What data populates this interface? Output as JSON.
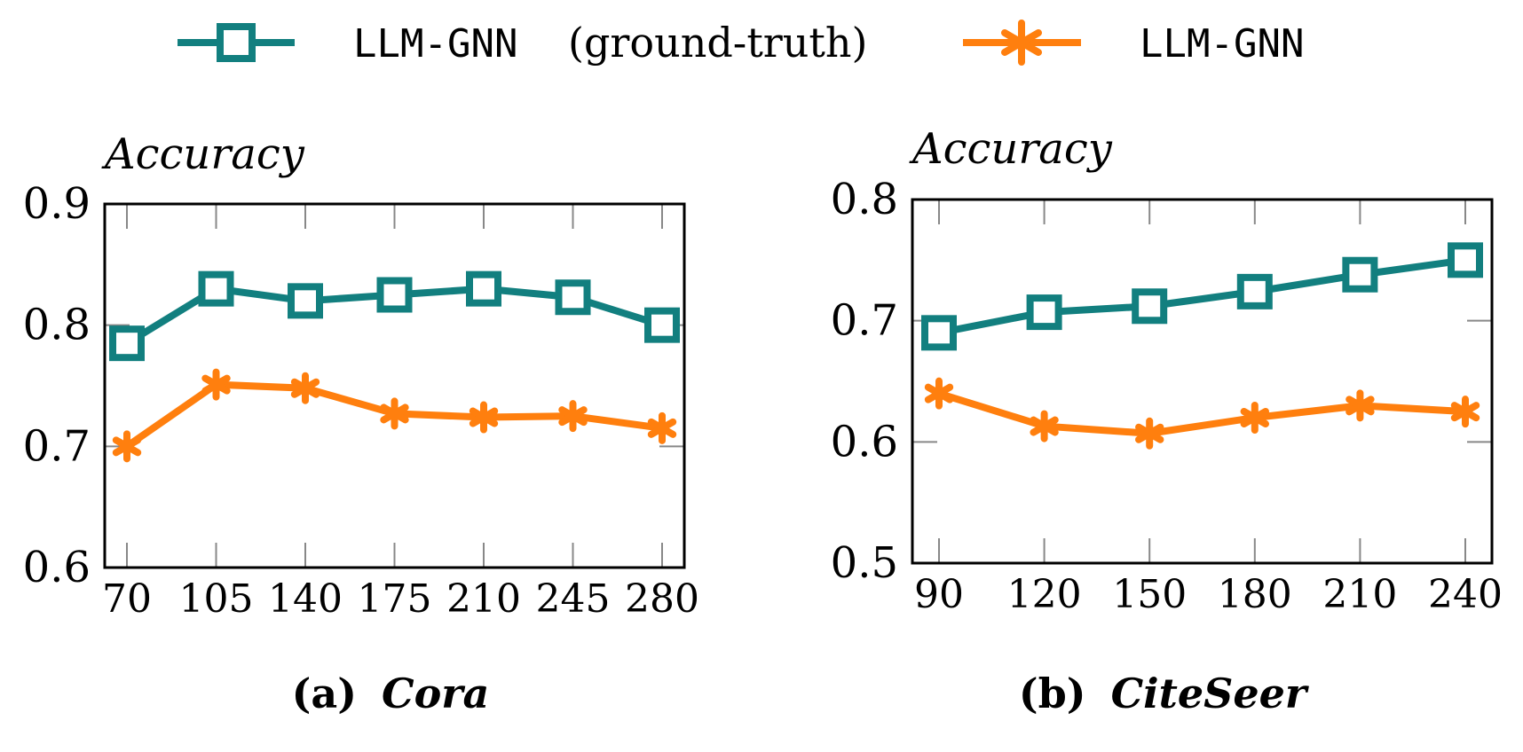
{
  "legend": {
    "items": [
      {
        "label_code": "LLM-GNN",
        "label_suffix": "(ground-truth)",
        "marker": "square-marker-icon",
        "color": "#127f7f"
      },
      {
        "label_code": "LLM-GNN",
        "label_suffix": "",
        "marker": "star-marker-icon",
        "color": "#ff7f0e"
      }
    ]
  },
  "chart_data": [
    {
      "type": "line",
      "caption_prefix": "(a)",
      "caption_name": "Cora",
      "ylabel": "Accuracy",
      "xlabel": "",
      "x": [
        70,
        105,
        140,
        175,
        210,
        245,
        280
      ],
      "x_tick_labels": [
        "70",
        "105",
        "140",
        "175",
        "210",
        "245",
        "280"
      ],
      "ylim": [
        0.6,
        0.9
      ],
      "y_ticks": [
        0.6,
        0.7,
        0.8,
        0.9
      ],
      "y_tick_labels": [
        "0.6",
        "0.7",
        "0.8",
        "0.9"
      ],
      "series": [
        {
          "name": "LLM-GNN (ground-truth)",
          "marker": "square",
          "color": "#127f7f",
          "values": [
            0.785,
            0.83,
            0.82,
            0.825,
            0.83,
            0.823,
            0.8
          ]
        },
        {
          "name": "LLM-GNN",
          "marker": "star",
          "color": "#ff7f0e",
          "values": [
            0.7,
            0.751,
            0.748,
            0.727,
            0.724,
            0.725,
            0.715
          ]
        }
      ]
    },
    {
      "type": "line",
      "caption_prefix": "(b)",
      "caption_name": "CiteSeer",
      "ylabel": "Accuracy",
      "xlabel": "",
      "x": [
        90,
        120,
        150,
        180,
        210,
        240
      ],
      "x_tick_labels": [
        "90",
        "120",
        "150",
        "180",
        "210",
        "240"
      ],
      "ylim": [
        0.5,
        0.8
      ],
      "y_ticks": [
        0.5,
        0.6,
        0.7,
        0.8
      ],
      "y_tick_labels": [
        "0.5",
        "0.6",
        "0.7",
        "0.8"
      ],
      "series": [
        {
          "name": "LLM-GNN (ground-truth)",
          "marker": "square",
          "color": "#127f7f",
          "values": [
            0.69,
            0.707,
            0.712,
            0.724,
            0.738,
            0.75
          ]
        },
        {
          "name": "LLM-GNN",
          "marker": "star",
          "color": "#ff7f0e",
          "values": [
            0.64,
            0.613,
            0.607,
            0.62,
            0.63,
            0.625
          ]
        }
      ]
    }
  ]
}
